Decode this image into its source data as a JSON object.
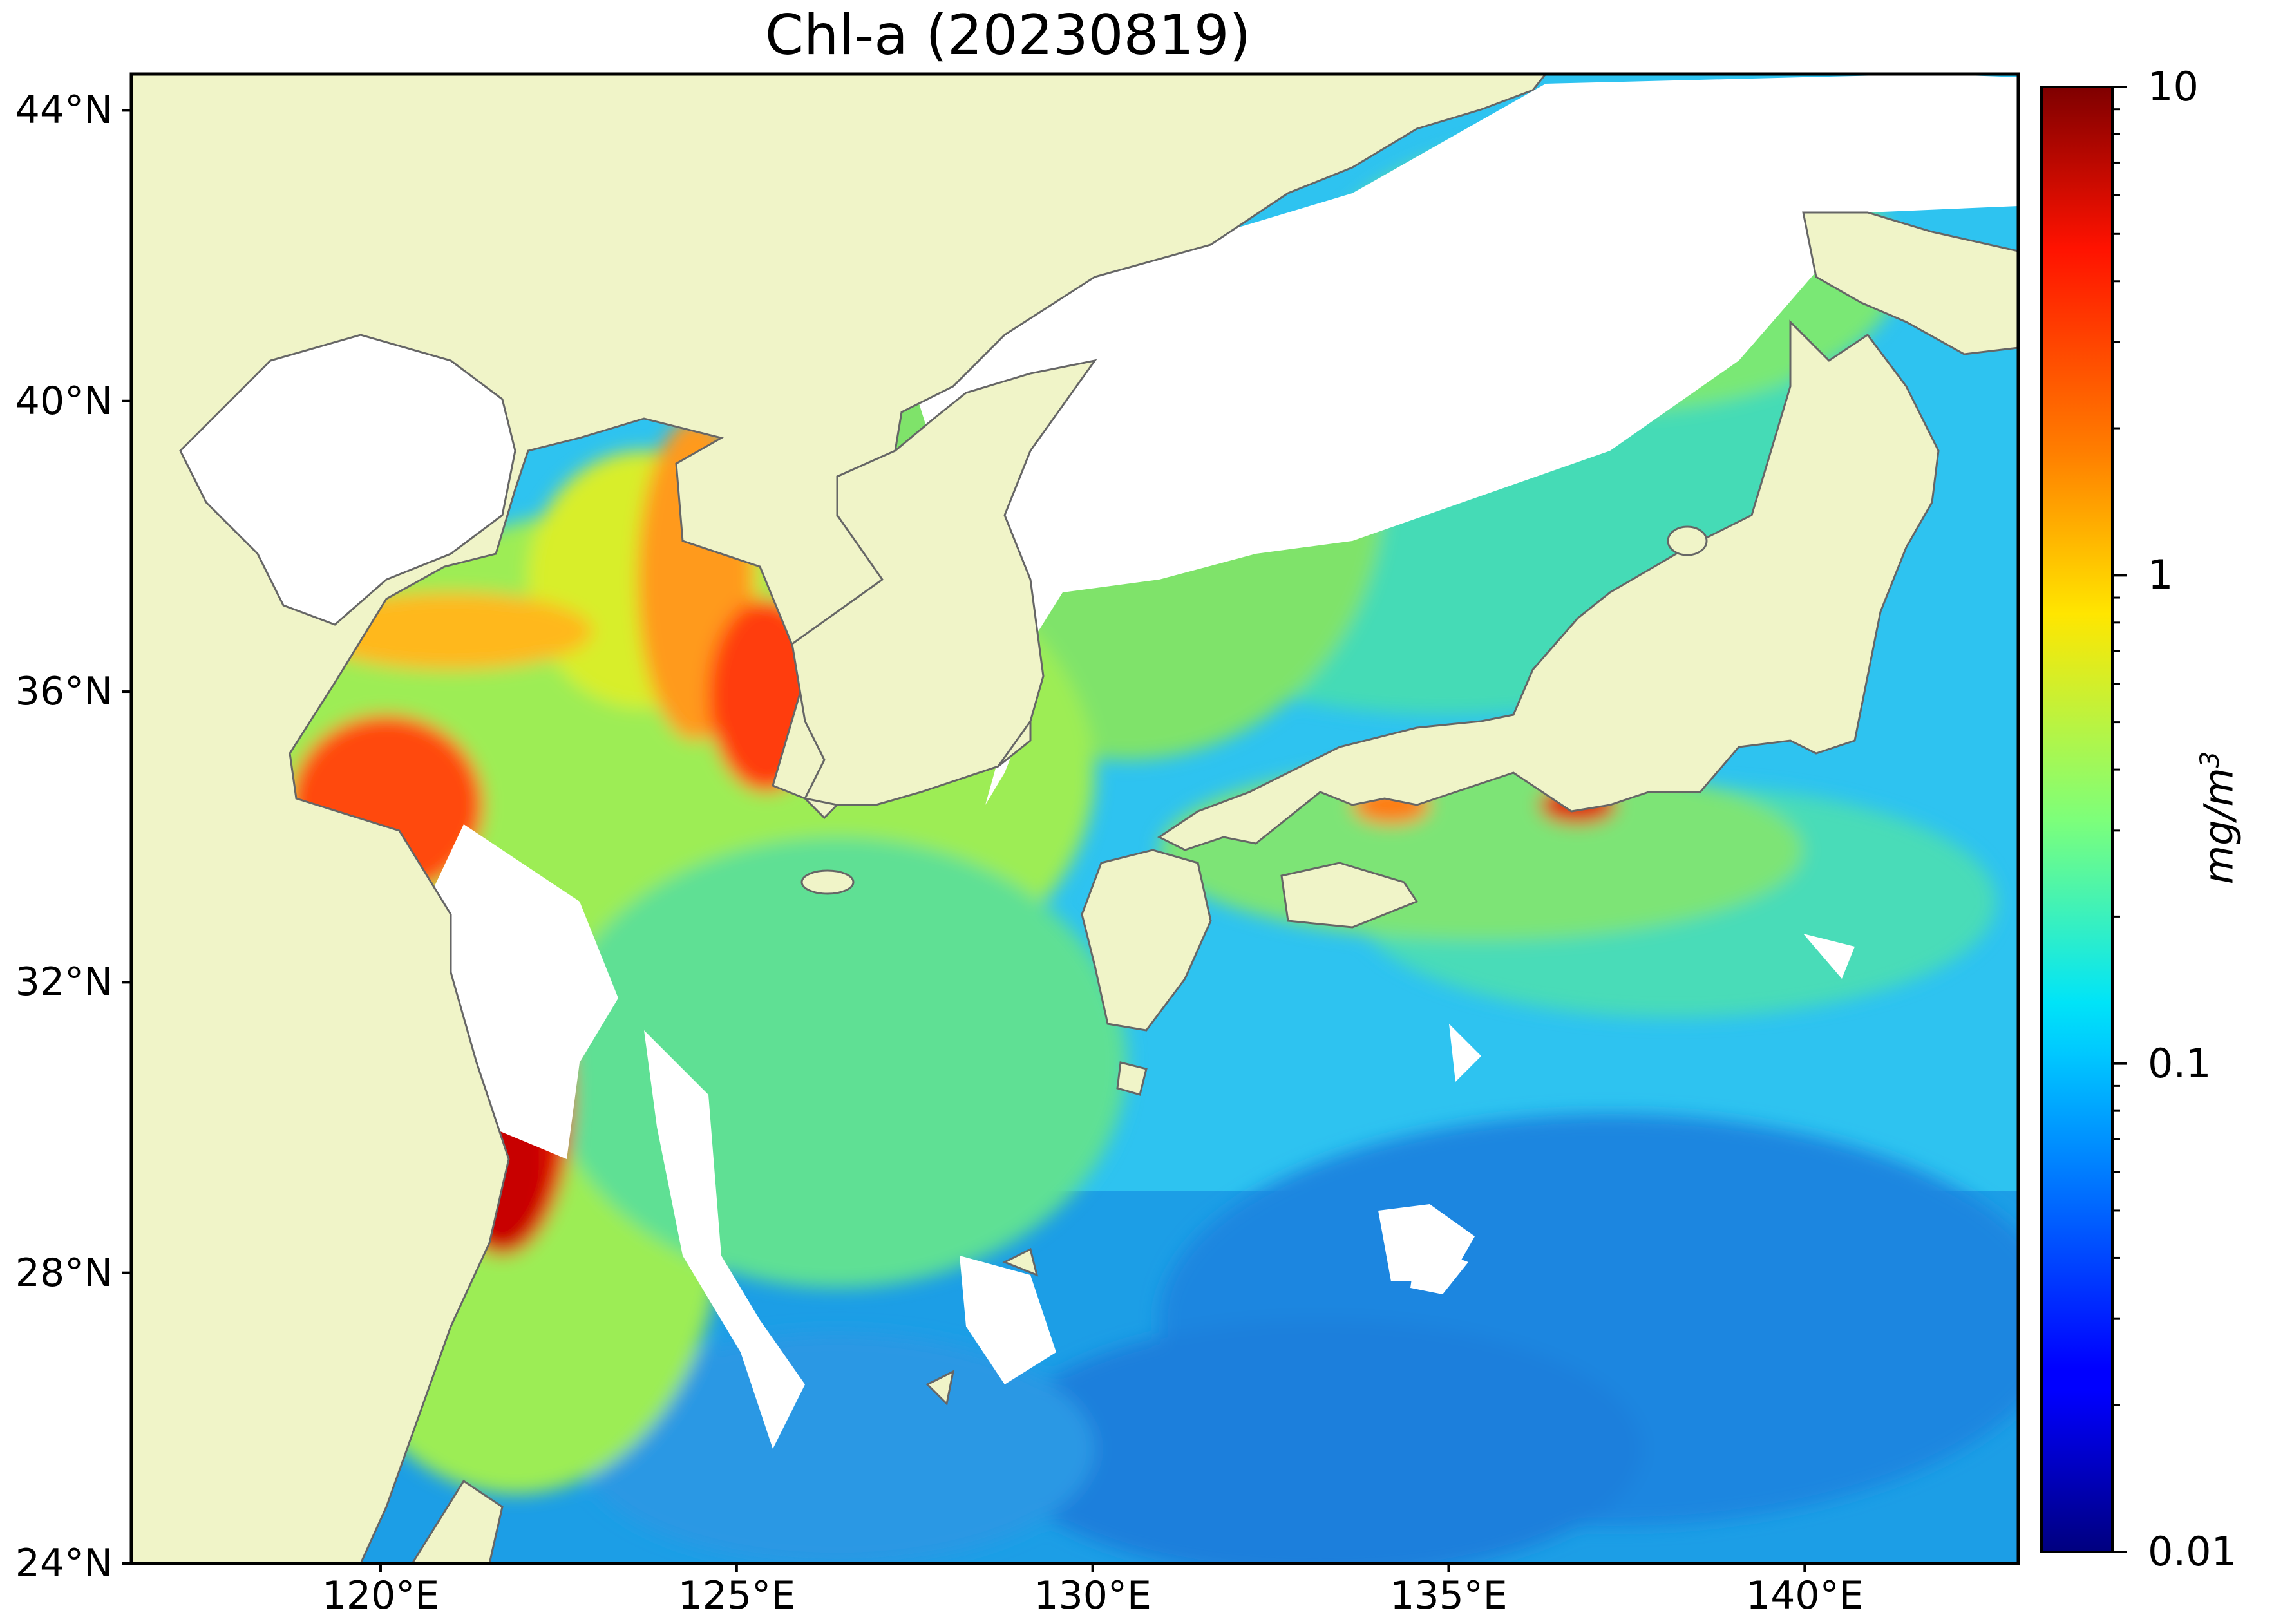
{
  "title": "Chl-a (20230819)",
  "map": {
    "extent_lon": [
      116.5,
      143.0
    ],
    "extent_lat": [
      24.0,
      44.5
    ],
    "lat_ticks": [
      {
        "value": 44,
        "label": "44°N"
      },
      {
        "value": 40,
        "label": "40°N"
      },
      {
        "value": 36,
        "label": "36°N"
      },
      {
        "value": 32,
        "label": "32°N"
      },
      {
        "value": 28,
        "label": "28°N"
      },
      {
        "value": 24,
        "label": "24°N"
      }
    ],
    "lon_ticks": [
      {
        "value": 120,
        "label": "120°E"
      },
      {
        "value": 125,
        "label": "125°E"
      },
      {
        "value": 130,
        "label": "130°E"
      },
      {
        "value": 135,
        "label": "135°E"
      },
      {
        "value": 140,
        "label": "140°E"
      }
    ],
    "colors": {
      "land": "#f0f4c8",
      "coastline": "#666666",
      "no_data": "#ffffff"
    }
  },
  "colorbar": {
    "scale": "log",
    "colormap": "jet",
    "range": [
      0.01,
      10
    ],
    "ticks": [
      {
        "value": 10,
        "label": "10"
      },
      {
        "value": 1,
        "label": "1"
      },
      {
        "value": 0.1,
        "label": "0.1"
      },
      {
        "value": 0.01,
        "label": "0.01"
      }
    ],
    "unit_base": "mg/m",
    "unit_exp": "3"
  }
}
